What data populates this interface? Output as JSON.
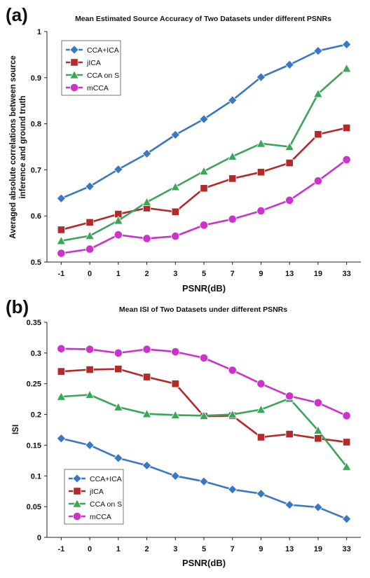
{
  "chart_data": [
    {
      "panel_label": "(a)",
      "type": "line",
      "title": "Mean Estimated Source Accuracy of Two Datasets under different PSNRs",
      "xlabel": "PSNR(dB)",
      "ylabel_lines": [
        "Averaged absolute correlations between source",
        "inference and ground truth"
      ],
      "categories": [
        "-1",
        "0",
        "1",
        "2",
        "3",
        "5",
        "7",
        "9",
        "13",
        "19",
        "33"
      ],
      "ylim": [
        0.5,
        1.0
      ],
      "yticks": [
        "0.5",
        "0.6",
        "0.7",
        "0.8",
        "0.9",
        "1"
      ],
      "grid": false,
      "legend_position": "top-left",
      "series": [
        {
          "name": "CCA+ICA",
          "color": "#3a78c2",
          "marker": "diamond",
          "values": [
            0.638,
            0.664,
            0.701,
            0.735,
            0.776,
            0.81,
            0.851,
            0.901,
            0.928,
            0.958,
            0.972
          ]
        },
        {
          "name": "jICA",
          "color": "#b22a2a",
          "marker": "square",
          "values": [
            0.57,
            0.586,
            0.604,
            0.617,
            0.609,
            0.66,
            0.681,
            0.695,
            0.715,
            0.777,
            0.791
          ]
        },
        {
          "name": "CCA on S",
          "color": "#3aa65a",
          "marker": "triangle",
          "values": [
            0.546,
            0.557,
            0.59,
            0.63,
            0.663,
            0.697,
            0.729,
            0.757,
            0.75,
            0.865,
            0.92
          ]
        },
        {
          "name": "mCCA",
          "color": "#cc33cc",
          "marker": "circle",
          "values": [
            0.519,
            0.528,
            0.559,
            0.551,
            0.556,
            0.58,
            0.593,
            0.611,
            0.634,
            0.676,
            0.722
          ]
        }
      ]
    },
    {
      "panel_label": "(b)",
      "type": "line",
      "title": "Mean ISI of Two Datasets under different PSNRs",
      "xlabel": "PSNR(dB)",
      "ylabel_lines": [
        "ISI"
      ],
      "categories": [
        "-1",
        "0",
        "1",
        "2",
        "3",
        "5",
        "7",
        "9",
        "13",
        "19",
        "33"
      ],
      "ylim": [
        0,
        0.35
      ],
      "yticks": [
        "0",
        "0.05",
        "0.1",
        "0.15",
        "0.2",
        "0.25",
        "0.3",
        "0.35"
      ],
      "grid": false,
      "legend_position": "bottom-left",
      "series": [
        {
          "name": "CCA+ICA",
          "color": "#3a78c2",
          "marker": "diamond",
          "values": [
            0.161,
            0.15,
            0.129,
            0.117,
            0.1,
            0.091,
            0.078,
            0.071,
            0.053,
            0.049,
            0.03
          ]
        },
        {
          "name": "jICA",
          "color": "#b22a2a",
          "marker": "square",
          "values": [
            0.27,
            0.273,
            0.274,
            0.261,
            0.25,
            0.197,
            0.198,
            0.163,
            0.168,
            0.161,
            0.155
          ]
        },
        {
          "name": "CCA on S",
          "color": "#3aa65a",
          "marker": "triangle",
          "values": [
            0.229,
            0.232,
            0.212,
            0.201,
            0.199,
            0.198,
            0.2,
            0.208,
            0.226,
            0.174,
            0.115
          ]
        },
        {
          "name": "mCCA",
          "color": "#cc33cc",
          "marker": "circle",
          "values": [
            0.307,
            0.306,
            0.3,
            0.306,
            0.302,
            0.292,
            0.272,
            0.25,
            0.23,
            0.219,
            0.198
          ]
        }
      ]
    }
  ]
}
